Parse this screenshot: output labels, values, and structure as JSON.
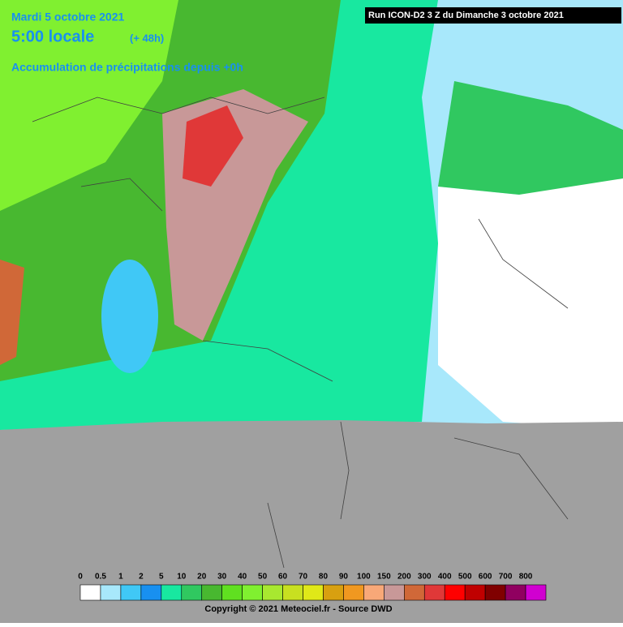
{
  "header": {
    "date": "Mardi 5 octobre 2021",
    "time": "5:00 locale",
    "lead": "(+ 48h)",
    "product": "Accumulation de précipitations depuis +0h",
    "run": "Run ICON-D2 3 Z du Dimanche 3 octobre 2021"
  },
  "legend": {
    "items": [
      {
        "label": "0",
        "color": "#ffffff"
      },
      {
        "label": "0.5",
        "color": "#a8e8fb"
      },
      {
        "label": "1",
        "color": "#40c8f6"
      },
      {
        "label": "2",
        "color": "#1890f0"
      },
      {
        "label": "5",
        "color": "#18e8a0"
      },
      {
        "label": "10",
        "color": "#30c860"
      },
      {
        "label": "20",
        "color": "#48b830"
      },
      {
        "label": "30",
        "color": "#60e020"
      },
      {
        "label": "40",
        "color": "#80f030"
      },
      {
        "label": "50",
        "color": "#a8e830"
      },
      {
        "label": "60",
        "color": "#c8e020"
      },
      {
        "label": "70",
        "color": "#e0e818"
      },
      {
        "label": "80",
        "color": "#d8a010"
      },
      {
        "label": "90",
        "color": "#f09820"
      },
      {
        "label": "100",
        "color": "#f8a878"
      },
      {
        "label": "150",
        "color": "#c89898"
      },
      {
        "label": "200",
        "color": "#d06838"
      },
      {
        "label": "300",
        "color": "#e03838"
      },
      {
        "label": "400",
        "color": "#ff0000"
      },
      {
        "label": "500",
        "color": "#c00000"
      },
      {
        "label": "600",
        "color": "#800000"
      },
      {
        "label": "700",
        "color": "#900060"
      },
      {
        "label": "800",
        "color": "#d000d0"
      }
    ]
  },
  "footer": {
    "copyright": "Copyright © 2021 Meteociel.fr - Source DWD"
  }
}
